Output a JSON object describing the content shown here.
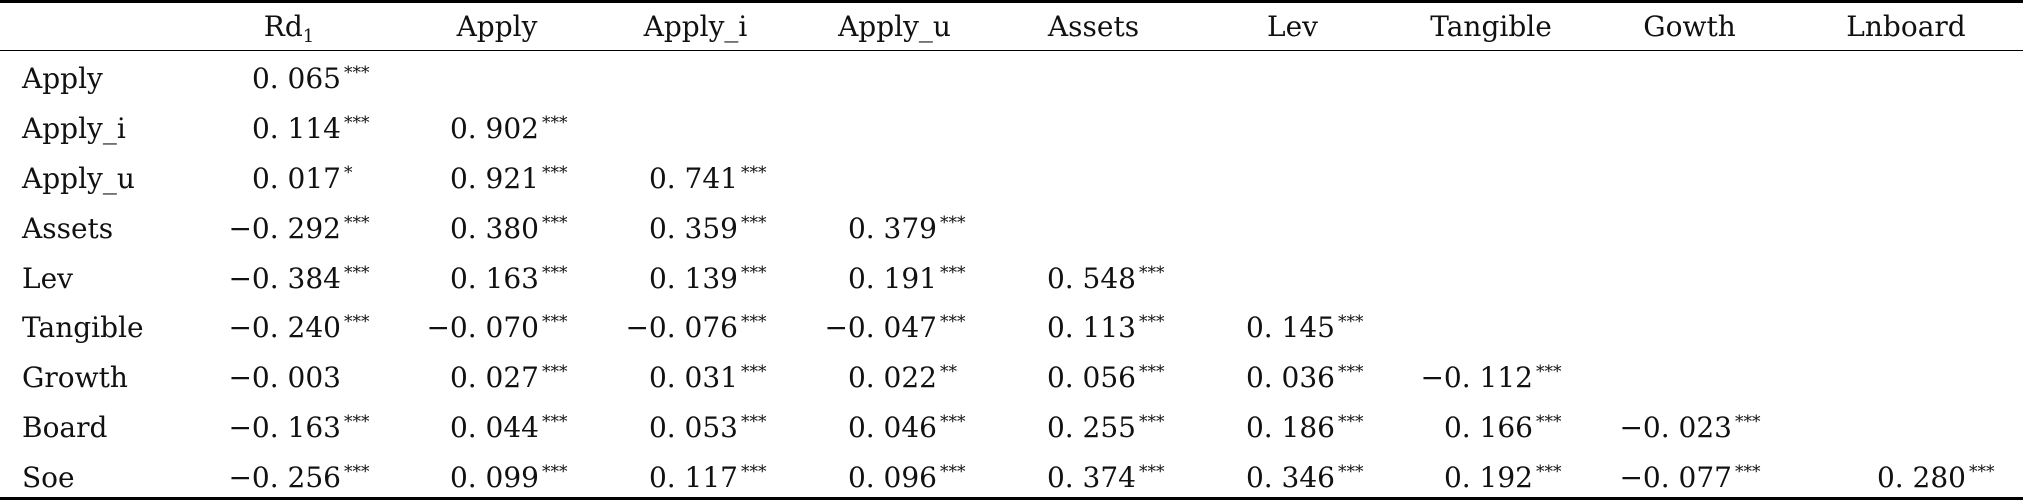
{
  "columns": [
    {
      "label": "Rd",
      "sub": "1"
    },
    {
      "label": "Apply"
    },
    {
      "label": "Apply_i"
    },
    {
      "label": "Apply_u"
    },
    {
      "label": "Assets"
    },
    {
      "label": "Lev"
    },
    {
      "label": "Tangible"
    },
    {
      "label": "Gowth"
    },
    {
      "label": "Lnboard"
    }
  ],
  "rows": [
    {
      "label": "Apply",
      "cells": [
        [
          "0. 065",
          "***"
        ]
      ]
    },
    {
      "label": "Apply_i",
      "cells": [
        [
          "0. 114",
          "***"
        ],
        [
          "0. 902",
          "***"
        ]
      ]
    },
    {
      "label": "Apply_u",
      "cells": [
        [
          "0. 017",
          "*"
        ],
        [
          "0. 921",
          "***"
        ],
        [
          "0. 741",
          "***"
        ]
      ]
    },
    {
      "label": "Assets",
      "cells": [
        [
          "−0. 292",
          "***"
        ],
        [
          "0. 380",
          "***"
        ],
        [
          "0. 359",
          "***"
        ],
        [
          "0. 379",
          "***"
        ]
      ]
    },
    {
      "label": "Lev",
      "cells": [
        [
          "−0. 384",
          "***"
        ],
        [
          "0. 163",
          "***"
        ],
        [
          "0. 139",
          "***"
        ],
        [
          "0. 191",
          "***"
        ],
        [
          "0. 548",
          "***"
        ]
      ]
    },
    {
      "label": "Tangible",
      "cells": [
        [
          "−0. 240",
          "***"
        ],
        [
          "−0. 070",
          "***"
        ],
        [
          "−0. 076",
          "***"
        ],
        [
          "−0. 047",
          "***"
        ],
        [
          "0. 113",
          "***"
        ],
        [
          "0. 145",
          "***"
        ]
      ]
    },
    {
      "label": "Growth",
      "cells": [
        [
          "−0. 003",
          ""
        ],
        [
          "0. 027",
          "***"
        ],
        [
          "0. 031",
          "***"
        ],
        [
          "0. 022",
          "**"
        ],
        [
          "0. 056",
          "***"
        ],
        [
          "0. 036",
          "***"
        ],
        [
          "−0. 112",
          "***"
        ]
      ]
    },
    {
      "label": "Board",
      "cells": [
        [
          "−0. 163",
          "***"
        ],
        [
          "0. 044",
          "***"
        ],
        [
          "0. 053",
          "***"
        ],
        [
          "0. 046",
          "***"
        ],
        [
          "0. 255",
          "***"
        ],
        [
          "0. 186",
          "***"
        ],
        [
          "0. 166",
          "***"
        ],
        [
          "−0. 023",
          "***"
        ]
      ]
    },
    {
      "label": "Soe",
      "cells": [
        [
          "−0. 256",
          "***"
        ],
        [
          "0. 099",
          "***"
        ],
        [
          "0. 117",
          "***"
        ],
        [
          "0. 096",
          "***"
        ],
        [
          "0. 374",
          "***"
        ],
        [
          "0. 346",
          "***"
        ],
        [
          "0. 192",
          "***"
        ],
        [
          "−0. 077",
          "***"
        ],
        [
          "0. 280",
          "***"
        ]
      ]
    }
  ]
}
